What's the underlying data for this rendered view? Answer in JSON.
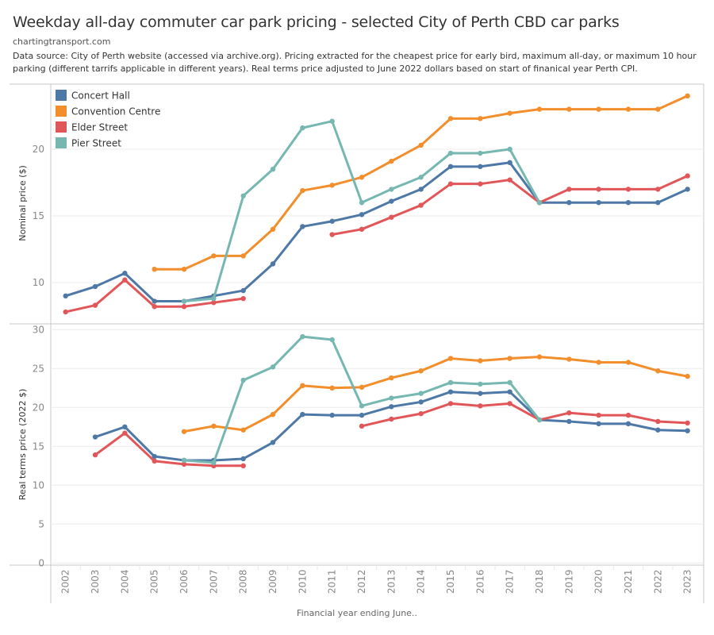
{
  "header": {
    "title": "Weekday all-day commuter car park pricing - selected City of Perth CBD car parks",
    "subtitle": "chartingtransport.com",
    "source": "Data source: City of Perth website (accessed via archive.org). Pricing extracted for the cheapest price for early bird, maximum all-day, or maximum 10 hour parking (different tarrifs applicable in different years). Real terms price adjusted to June 2022 dollars based on start of finanical year Perth CPI."
  },
  "chart_data": {
    "type": "line",
    "xlabel": "Financial year ending June..",
    "x": [
      2002,
      2003,
      2004,
      2005,
      2006,
      2007,
      2008,
      2009,
      2010,
      2011,
      2012,
      2013,
      2014,
      2015,
      2016,
      2017,
      2018,
      2019,
      2020,
      2021,
      2022,
      2023
    ],
    "legend": {
      "placement": "top-left",
      "entries": [
        {
          "name": "Concert Hall",
          "color": "#4e79a7"
        },
        {
          "name": "Convention Centre",
          "color": "#f28e2b"
        },
        {
          "name": "Elder Street",
          "color": "#e15759"
        },
        {
          "name": "Pier Street",
          "color": "#76b7b2"
        }
      ]
    },
    "panels": [
      {
        "ylabel": "Nominal price ($)",
        "ylim": [
          7,
          24.5
        ],
        "yticks": [
          10,
          15,
          20
        ],
        "grid": true,
        "series": [
          {
            "name": "Concert Hall",
            "values": [
              9.0,
              9.7,
              10.7,
              8.6,
              8.6,
              9.0,
              9.4,
              11.4,
              14.2,
              14.6,
              15.1,
              16.1,
              17.0,
              18.7,
              18.7,
              19.0,
              16.0,
              16.0,
              16.0,
              16.0,
              16.0,
              17.0
            ]
          },
          {
            "name": "Convention Centre",
            "values": [
              null,
              null,
              null,
              11.0,
              11.0,
              12.0,
              12.0,
              14.0,
              16.9,
              17.3,
              17.9,
              19.1,
              20.3,
              22.3,
              22.3,
              22.7,
              23.0,
              23.0,
              23.0,
              23.0,
              23.0,
              24.0
            ]
          },
          {
            "name": "Elder Street",
            "values": [
              7.8,
              8.3,
              10.2,
              8.2,
              8.2,
              8.5,
              8.8,
              null,
              null,
              13.6,
              14.0,
              14.9,
              15.8,
              17.4,
              17.4,
              17.7,
              16.0,
              17.0,
              17.0,
              17.0,
              17.0,
              18.0
            ]
          },
          {
            "name": "Pier Street",
            "values": [
              null,
              null,
              null,
              null,
              8.6,
              8.8,
              16.5,
              18.5,
              21.6,
              22.1,
              16.0,
              17.0,
              17.9,
              19.7,
              19.7,
              20.0,
              16.0,
              null,
              null,
              null,
              null,
              null
            ]
          }
        ]
      },
      {
        "ylabel": "Real terms price (2022 $)",
        "ylim": [
          0,
          30.5
        ],
        "yticks": [
          0,
          5,
          10,
          15,
          20,
          25,
          30
        ],
        "grid": true,
        "series": [
          {
            "name": "Concert Hall",
            "values": [
              null,
              16.2,
              17.5,
              13.7,
              13.2,
              13.2,
              13.4,
              15.5,
              19.1,
              19.0,
              19.0,
              20.1,
              20.7,
              22.0,
              21.8,
              22.0,
              18.4,
              18.2,
              17.9,
              17.9,
              17.1,
              17.0
            ]
          },
          {
            "name": "Convention Centre",
            "values": [
              null,
              null,
              null,
              null,
              16.9,
              17.6,
              17.1,
              19.1,
              22.8,
              22.5,
              22.6,
              23.8,
              24.7,
              26.3,
              26.0,
              26.3,
              26.5,
              26.2,
              25.8,
              25.8,
              24.7,
              24.0
            ]
          },
          {
            "name": "Elder Street",
            "values": [
              null,
              13.9,
              16.7,
              13.1,
              12.7,
              12.5,
              12.5,
              null,
              null,
              null,
              17.6,
              18.5,
              19.2,
              20.5,
              20.2,
              20.5,
              18.4,
              19.3,
              19.0,
              19.0,
              18.2,
              18.0
            ]
          },
          {
            "name": "Pier Street",
            "values": [
              null,
              null,
              null,
              null,
              13.2,
              12.9,
              23.5,
              25.2,
              29.1,
              28.7,
              20.2,
              21.2,
              21.8,
              23.2,
              23.0,
              23.2,
              18.4,
              null,
              null,
              null,
              null,
              null
            ]
          }
        ]
      }
    ]
  }
}
